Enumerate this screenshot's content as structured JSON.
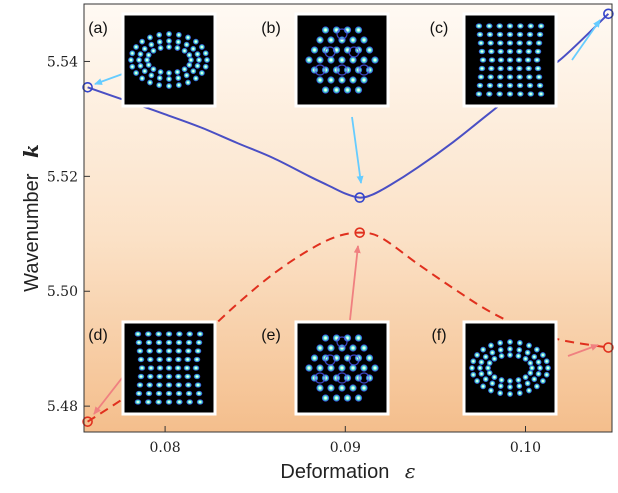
{
  "chart_data": {
    "type": "line",
    "xlabel": "Deformation",
    "xlabel_symbol": "ε",
    "ylabel": "Wavenumber",
    "ylabel_symbol": "k",
    "xlim": [
      0.0755,
      0.1048
    ],
    "ylim": [
      5.4755,
      5.55
    ],
    "xticks": [
      0.08,
      0.09,
      0.1
    ],
    "xtick_labels": [
      "0.08",
      "0.09",
      "0.10"
    ],
    "yticks": [
      5.48,
      5.5,
      5.52,
      5.54
    ],
    "ytick_labels": [
      "5.48",
      "5.50",
      "5.52",
      "5.54"
    ],
    "grid": false,
    "legend": "none",
    "series": [
      {
        "style": "solid",
        "color": "#4a4fc4",
        "x": [
          0.0757,
          0.078,
          0.08,
          0.082,
          0.084,
          0.086,
          0.088,
          0.089,
          0.09,
          0.0908,
          0.0915,
          0.0925,
          0.094,
          0.096,
          0.098,
          0.1,
          0.102,
          0.1046
        ],
        "y": [
          5.5355,
          5.533,
          5.5308,
          5.5285,
          5.5258,
          5.5232,
          5.52,
          5.5185,
          5.517,
          5.5163,
          5.5168,
          5.5185,
          5.5215,
          5.526,
          5.531,
          5.536,
          5.5405,
          5.5483
        ]
      },
      {
        "style": "dashed",
        "color": "#e0301e",
        "x": [
          0.0757,
          0.078,
          0.08,
          0.082,
          0.084,
          0.086,
          0.088,
          0.0895,
          0.0908,
          0.092,
          0.094,
          0.096,
          0.098,
          0.1,
          0.102,
          0.1046
        ],
        "y": [
          5.4773,
          5.482,
          5.4868,
          5.492,
          5.4978,
          5.503,
          5.5072,
          5.5095,
          5.5102,
          5.5093,
          5.5048,
          5.5005,
          5.4965,
          5.4935,
          5.4915,
          5.4902
        ]
      }
    ],
    "markers": [
      {
        "x": 0.0757,
        "y": 5.5355,
        "color": "#3344cc"
      },
      {
        "x": 0.0908,
        "y": 5.5163,
        "color": "#3344cc"
      },
      {
        "x": 0.1046,
        "y": 5.5483,
        "color": "#3344cc"
      },
      {
        "x": 0.0757,
        "y": 5.4773,
        "color": "#e0301e"
      },
      {
        "x": 0.0908,
        "y": 5.5102,
        "color": "#e0301e"
      },
      {
        "x": 0.1046,
        "y": 5.4902,
        "color": "#e0301e"
      }
    ],
    "insets": [
      {
        "label": "(a)",
        "pattern": "ring",
        "arrow_color": "#66ccff"
      },
      {
        "label": "(b)",
        "pattern": "lattice",
        "arrow_color": "#66ccff"
      },
      {
        "label": "(c)",
        "pattern": "bowtie",
        "arrow_color": "#66ccff"
      },
      {
        "label": "(d)",
        "pattern": "bowtie",
        "arrow_color": "#f08080"
      },
      {
        "label": "(e)",
        "pattern": "lattice",
        "arrow_color": "#f08080"
      },
      {
        "label": "(f)",
        "pattern": "ring",
        "arrow_color": "#f08080"
      }
    ]
  }
}
